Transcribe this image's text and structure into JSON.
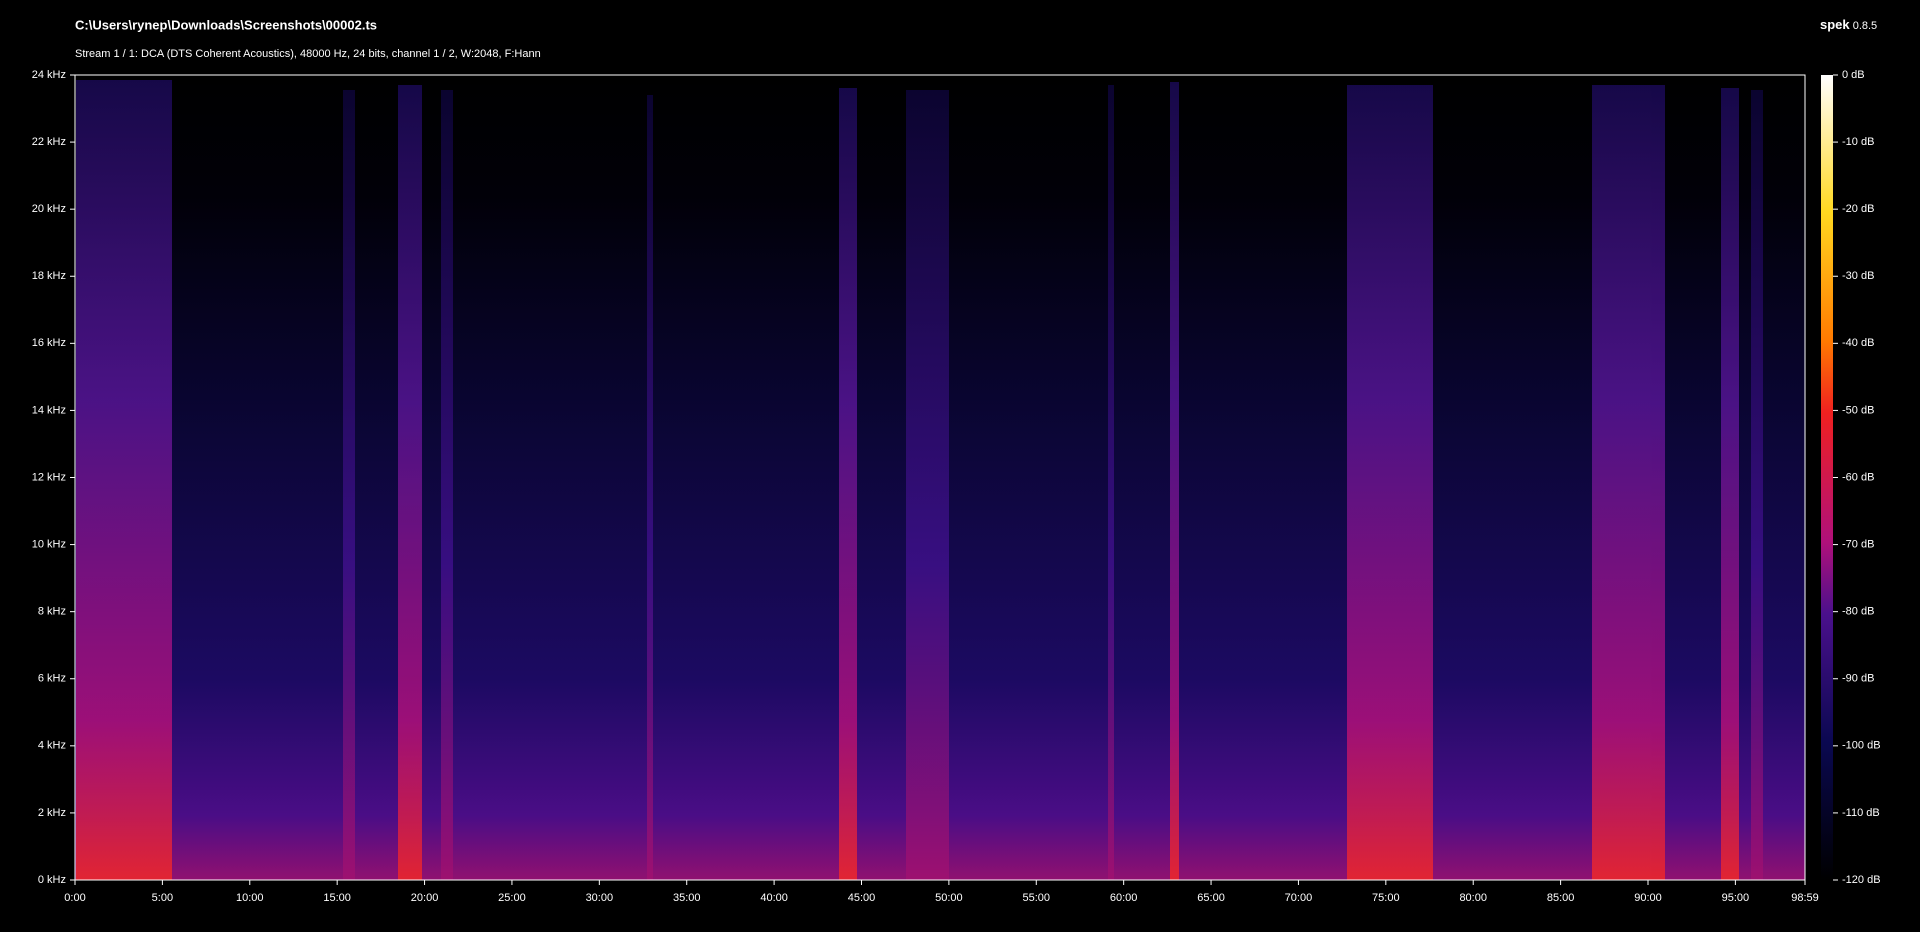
{
  "chart_data": {
    "type": "spectrogram",
    "title": "C:\\Users\\rynep\\Downloads\\Screenshots\\00002.ts",
    "subtitle": "Stream 1 / 1: DCA (DTS Coherent Acoustics), 48000 Hz, 24 bits, channel 1 / 2, W:2048, F:Hann",
    "app_name": "spek",
    "app_version": "0.8.5",
    "xlim": [
      0,
      98.98333
    ],
    "xticks": [
      {
        "value": 0,
        "label": "0:00"
      },
      {
        "value": 5,
        "label": "5:00"
      },
      {
        "value": 10,
        "label": "10:00"
      },
      {
        "value": 15,
        "label": "15:00"
      },
      {
        "value": 20,
        "label": "20:00"
      },
      {
        "value": 25,
        "label": "25:00"
      },
      {
        "value": 30,
        "label": "30:00"
      },
      {
        "value": 35,
        "label": "35:00"
      },
      {
        "value": 40,
        "label": "40:00"
      },
      {
        "value": 45,
        "label": "45:00"
      },
      {
        "value": 50,
        "label": "50:00"
      },
      {
        "value": 55,
        "label": "55:00"
      },
      {
        "value": 60,
        "label": "60:00"
      },
      {
        "value": 65,
        "label": "65:00"
      },
      {
        "value": 70,
        "label": "70:00"
      },
      {
        "value": 75,
        "label": "75:00"
      },
      {
        "value": 80,
        "label": "80:00"
      },
      {
        "value": 85,
        "label": "85:00"
      },
      {
        "value": 90,
        "label": "90:00"
      },
      {
        "value": 95,
        "label": "95:00"
      },
      {
        "value": 98.98333,
        "label": "98:59"
      }
    ],
    "ylim": [
      0,
      24
    ],
    "yticks": [
      {
        "value": 0,
        "label": "0 kHz"
      },
      {
        "value": 2,
        "label": "2 kHz"
      },
      {
        "value": 4,
        "label": "4 kHz"
      },
      {
        "value": 6,
        "label": "6 kHz"
      },
      {
        "value": 8,
        "label": "8 kHz"
      },
      {
        "value": 10,
        "label": "10 kHz"
      },
      {
        "value": 12,
        "label": "12 kHz"
      },
      {
        "value": 14,
        "label": "14 kHz"
      },
      {
        "value": 16,
        "label": "16 kHz"
      },
      {
        "value": 18,
        "label": "18 kHz"
      },
      {
        "value": 20,
        "label": "20 kHz"
      },
      {
        "value": 22,
        "label": "22 kHz"
      },
      {
        "value": 24,
        "label": "24 kHz"
      }
    ],
    "clim": [
      -120,
      0
    ],
    "cticks": [
      {
        "value": 0,
        "label": "0 dB"
      },
      {
        "value": -10,
        "label": "-10 dB"
      },
      {
        "value": -20,
        "label": "-20 dB"
      },
      {
        "value": -30,
        "label": "-30 dB"
      },
      {
        "value": -40,
        "label": "-40 dB"
      },
      {
        "value": -50,
        "label": "-50 dB"
      },
      {
        "value": -60,
        "label": "-60 dB"
      },
      {
        "value": -70,
        "label": "-70 dB"
      },
      {
        "value": -80,
        "label": "-80 dB"
      },
      {
        "value": -90,
        "label": "-90 dB"
      },
      {
        "value": -100,
        "label": "-100 dB"
      },
      {
        "value": -110,
        "label": "-110 dB"
      },
      {
        "value": -120,
        "label": "-120 dB"
      }
    ]
  }
}
